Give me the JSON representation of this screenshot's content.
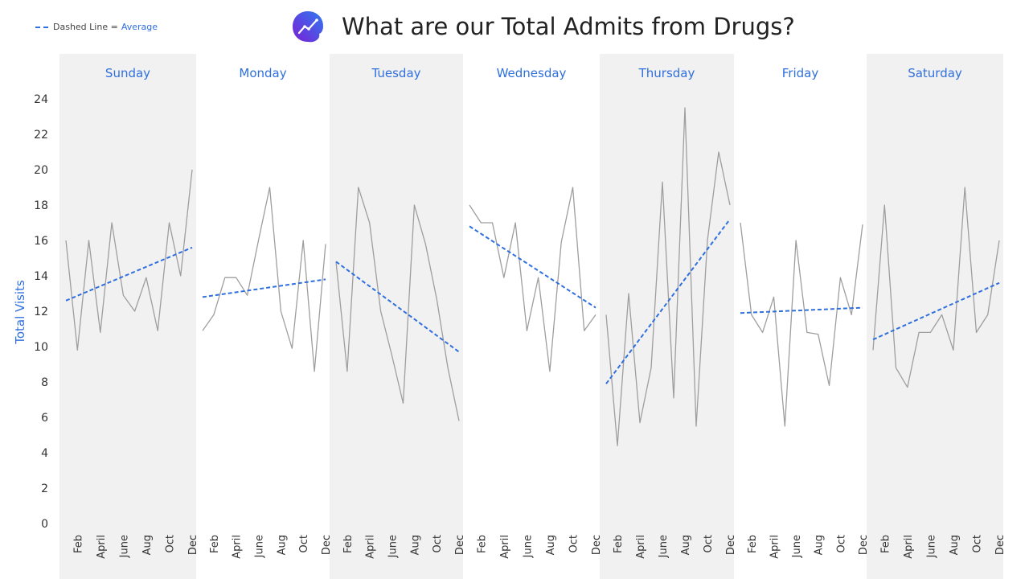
{
  "header": {
    "title": "What are our Total Admits from Drugs?",
    "legend_text": "Dashed Line =",
    "legend_avg": "Average"
  },
  "colors": {
    "accent": "#2f6fde",
    "line": "#9e9e9e",
    "panel_bg": "#f1f1f1"
  },
  "chart_data": {
    "type": "line",
    "title": "What are our Total Admits from Drugs?",
    "ylabel": "Total Visits",
    "ylim": [
      0,
      24
    ],
    "yticks": [
      0,
      2,
      4,
      6,
      8,
      10,
      12,
      14,
      16,
      18,
      20,
      22,
      24
    ],
    "month_labels": [
      "Feb",
      "April",
      "June",
      "Aug",
      "Oct",
      "Dec"
    ],
    "legend": "Dashed Line = Average",
    "panels": [
      {
        "day": "Sunday",
        "values": [
          16,
          9.8,
          16,
          10.8,
          17,
          12.9,
          12,
          13.9,
          10.9,
          17,
          14,
          20
        ],
        "trend": [
          12.6,
          15.6
        ]
      },
      {
        "day": "Monday",
        "values": [
          10.9,
          11.8,
          13.9,
          13.9,
          12.9,
          16,
          19,
          12,
          9.9,
          16,
          8.6,
          15.8
        ],
        "trend": [
          12.8,
          13.8
        ]
      },
      {
        "day": "Tuesday",
        "values": [
          14.8,
          8.6,
          19,
          17,
          12,
          9.5,
          6.8,
          18,
          15.8,
          12.7,
          8.8,
          5.8
        ],
        "trend": [
          14.8,
          9.7
        ]
      },
      {
        "day": "Wednesday",
        "values": [
          18,
          17,
          17,
          13.9,
          17,
          10.9,
          13.9,
          8.6,
          15.9,
          19,
          10.9,
          11.8
        ],
        "trend": [
          16.8,
          12.2
        ]
      },
      {
        "day": "Thursday",
        "values": [
          11.8,
          4.4,
          13,
          5.7,
          8.8,
          19.3,
          7.1,
          23.5,
          5.5,
          16,
          21,
          18
        ],
        "trend": [
          7.9,
          17.2
        ]
      },
      {
        "day": "Friday",
        "values": [
          17,
          11.8,
          10.8,
          12.8,
          5.5,
          16,
          10.8,
          10.7,
          7.8,
          13.9,
          11.8,
          16.9
        ],
        "trend": [
          11.9,
          12.2
        ]
      },
      {
        "day": "Saturday",
        "values": [
          9.8,
          18,
          8.8,
          7.7,
          10.8,
          10.8,
          11.8,
          9.8,
          19,
          10.8,
          11.8,
          16
        ],
        "trend": [
          10.4,
          13.6
        ]
      }
    ]
  }
}
